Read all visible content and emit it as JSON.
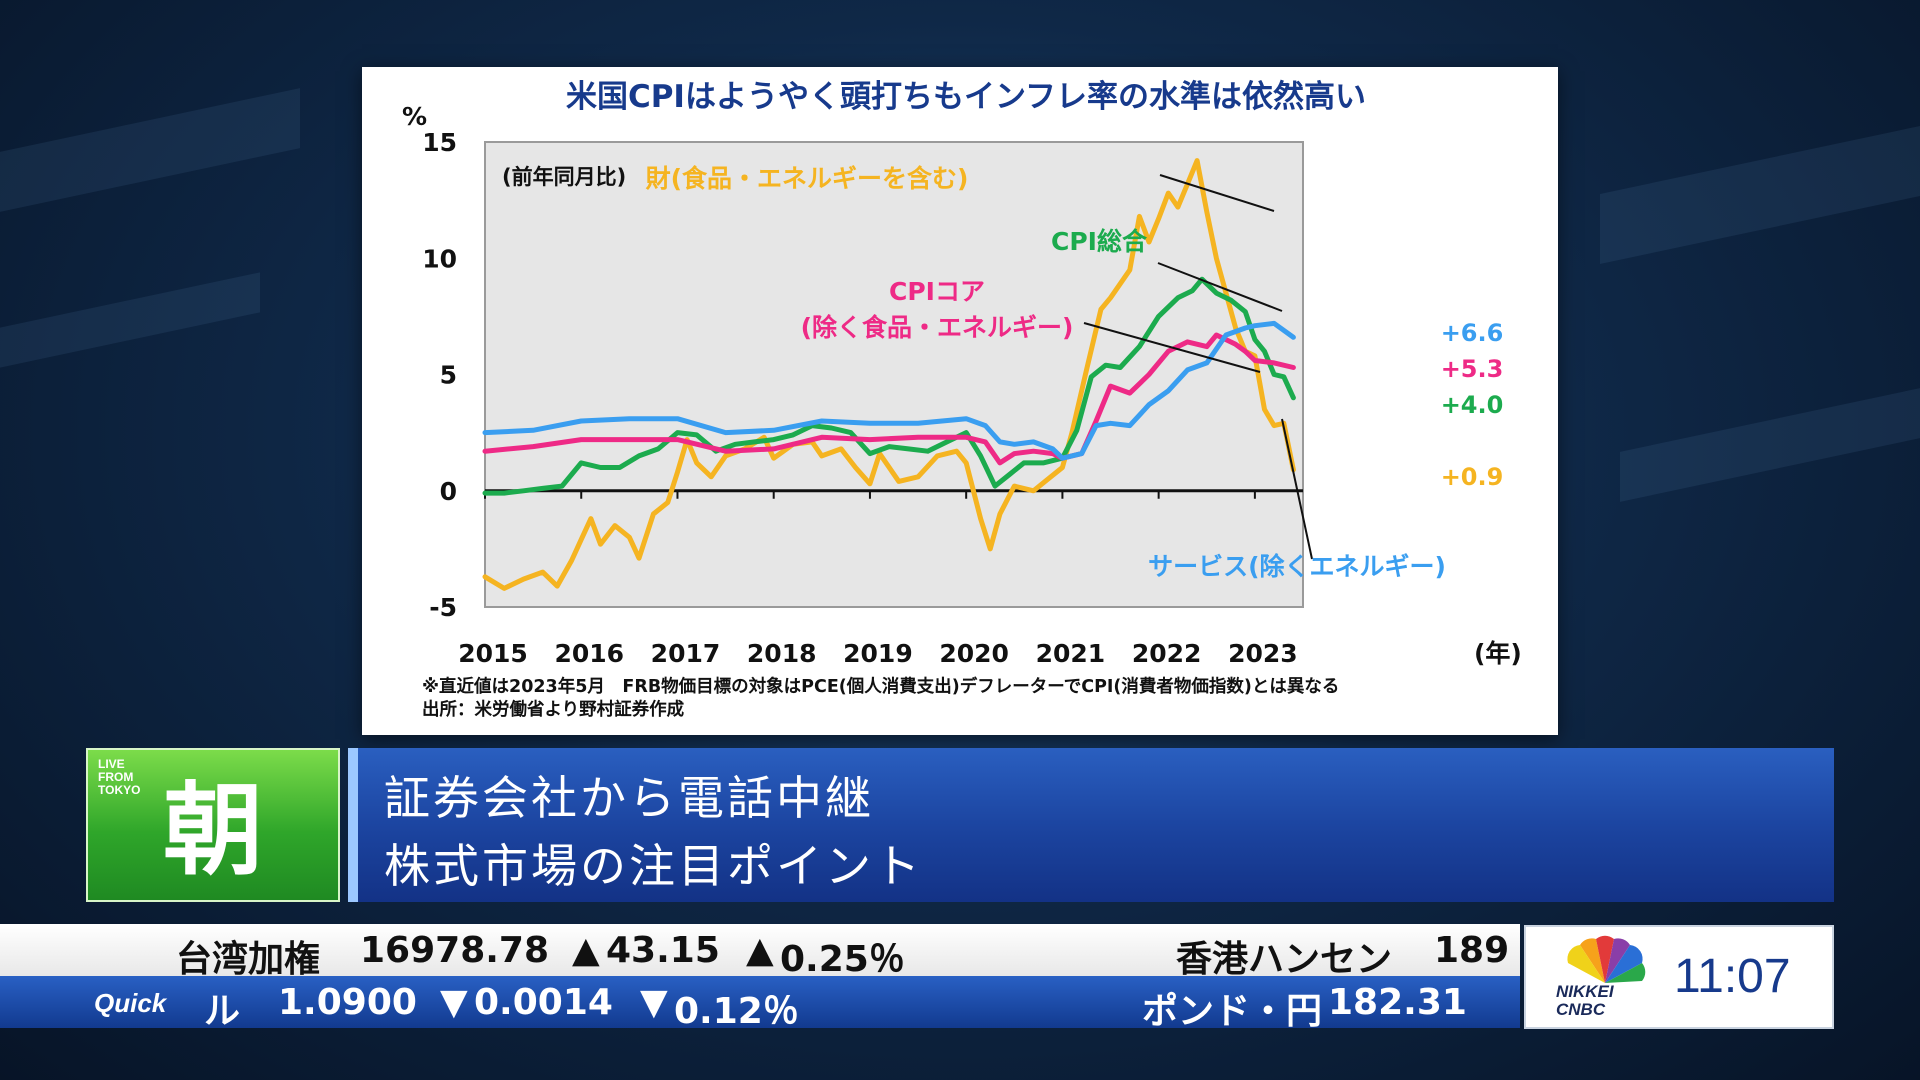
{
  "chart_data": {
    "type": "line",
    "title": "米国CPIはようやく頭打ちもインフレ率の水準は依然高い",
    "ylabel": "%",
    "xlabel": "(年)",
    "subtitle": "(前年同月比)",
    "ylim": [
      -5,
      15
    ],
    "xlim": [
      2015.0,
      2023.5
    ],
    "y_ticks": [
      15,
      10,
      5,
      0,
      -5
    ],
    "x_ticks": [
      2015,
      2016,
      2017,
      2018,
      2019,
      2020,
      2021,
      2022,
      2023
    ],
    "grid": false,
    "series": [
      {
        "name": "財(食品・エネルギーを含む)",
        "color": "#f5b421",
        "end_label": "+0.9",
        "x": [
          2015.0,
          2015.2,
          2015.4,
          2015.6,
          2015.75,
          2015.9,
          2016.0,
          2016.1,
          2016.2,
          2016.35,
          2016.5,
          2016.6,
          2016.75,
          2016.9,
          2017.0,
          2017.1,
          2017.2,
          2017.35,
          2017.5,
          2017.7,
          2017.9,
          2018.0,
          2018.2,
          2018.4,
          2018.5,
          2018.7,
          2018.85,
          2019.0,
          2019.1,
          2019.3,
          2019.5,
          2019.7,
          2019.9,
          2020.0,
          2020.15,
          2020.25,
          2020.35,
          2020.5,
          2020.7,
          2020.85,
          2021.0,
          2021.1,
          2021.25,
          2021.4,
          2021.5,
          2021.7,
          2021.8,
          2021.9,
          2022.0,
          2022.1,
          2022.2,
          2022.3,
          2022.4,
          2022.5,
          2022.6,
          2022.7,
          2022.8,
          2022.9,
          2023.0,
          2023.1,
          2023.2,
          2023.3,
          2023.4
        ],
        "values": [
          -3.7,
          -4.2,
          -3.8,
          -3.5,
          -4.1,
          -3.0,
          -2.1,
          -1.2,
          -2.3,
          -1.5,
          -2.0,
          -2.9,
          -1.0,
          -0.5,
          0.8,
          2.2,
          1.2,
          0.6,
          1.5,
          1.8,
          2.3,
          1.4,
          2.0,
          2.1,
          1.5,
          1.8,
          1.0,
          0.3,
          1.6,
          0.4,
          0.6,
          1.5,
          1.7,
          1.2,
          -1.2,
          -2.5,
          -1.0,
          0.2,
          0.0,
          0.5,
          1.0,
          2.5,
          5.2,
          7.8,
          8.3,
          9.5,
          11.8,
          10.7,
          11.7,
          12.8,
          12.2,
          13.2,
          14.2,
          12.0,
          10.0,
          8.5,
          7.0,
          6.0,
          5.8,
          3.5,
          2.8,
          2.9,
          0.9
        ]
      },
      {
        "name": "CPI総合",
        "color": "#1cab4e",
        "end_label": "+4.0",
        "x": [
          2015.0,
          2015.2,
          2015.4,
          2015.6,
          2015.8,
          2016.0,
          2016.2,
          2016.4,
          2016.6,
          2016.8,
          2017.0,
          2017.2,
          2017.4,
          2017.6,
          2017.8,
          2018.0,
          2018.2,
          2018.4,
          2018.6,
          2018.8,
          2019.0,
          2019.2,
          2019.4,
          2019.6,
          2019.8,
          2020.0,
          2020.15,
          2020.3,
          2020.45,
          2020.6,
          2020.8,
          2021.0,
          2021.15,
          2021.3,
          2021.45,
          2021.6,
          2021.8,
          2022.0,
          2022.2,
          2022.35,
          2022.45,
          2022.6,
          2022.75,
          2022.9,
          2023.0,
          2023.1,
          2023.2,
          2023.3,
          2023.4
        ],
        "values": [
          -0.1,
          -0.1,
          0.0,
          0.1,
          0.2,
          1.2,
          1.0,
          1.0,
          1.5,
          1.8,
          2.5,
          2.4,
          1.7,
          2.0,
          2.1,
          2.2,
          2.4,
          2.8,
          2.7,
          2.5,
          1.6,
          1.9,
          1.8,
          1.7,
          2.1,
          2.5,
          1.5,
          0.2,
          0.7,
          1.2,
          1.2,
          1.4,
          2.6,
          4.9,
          5.4,
          5.3,
          6.2,
          7.5,
          8.3,
          8.6,
          9.1,
          8.5,
          8.2,
          7.7,
          6.5,
          6.0,
          5.0,
          4.9,
          4.0
        ]
      },
      {
        "name": "CPIコア\n(除く食品・エネルギー)",
        "color": "#ee2a86",
        "end_label": "+5.3",
        "x": [
          2015.0,
          2015.5,
          2016.0,
          2016.5,
          2017.0,
          2017.5,
          2018.0,
          2018.5,
          2019.0,
          2019.5,
          2020.0,
          2020.2,
          2020.35,
          2020.5,
          2020.7,
          2020.9,
          2021.0,
          2021.2,
          2021.35,
          2021.5,
          2021.7,
          2021.9,
          2022.1,
          2022.3,
          2022.5,
          2022.6,
          2022.8,
          2022.9,
          2023.0,
          2023.2,
          2023.4
        ],
        "values": [
          1.7,
          1.9,
          2.2,
          2.2,
          2.2,
          1.7,
          1.8,
          2.3,
          2.2,
          2.3,
          2.3,
          2.1,
          1.2,
          1.6,
          1.7,
          1.6,
          1.4,
          1.6,
          3.0,
          4.5,
          4.2,
          5.0,
          6.0,
          6.4,
          6.2,
          6.7,
          6.3,
          6.0,
          5.6,
          5.5,
          5.3
        ]
      },
      {
        "name": "サービス(除くエネルギー)",
        "color": "#3a9ef0",
        "end_label": "+6.6",
        "x": [
          2015.0,
          2015.5,
          2016.0,
          2016.5,
          2017.0,
          2017.5,
          2018.0,
          2018.5,
          2019.0,
          2019.5,
          2020.0,
          2020.2,
          2020.35,
          2020.5,
          2020.7,
          2020.9,
          2021.0,
          2021.2,
          2021.35,
          2021.5,
          2021.7,
          2021.9,
          2022.1,
          2022.3,
          2022.5,
          2022.7,
          2022.9,
          2023.0,
          2023.2,
          2023.4
        ],
        "values": [
          2.5,
          2.6,
          3.0,
          3.1,
          3.1,
          2.5,
          2.6,
          3.0,
          2.9,
          2.9,
          3.1,
          2.8,
          2.1,
          2.0,
          2.1,
          1.8,
          1.4,
          1.6,
          2.8,
          2.9,
          2.8,
          3.7,
          4.3,
          5.2,
          5.5,
          6.7,
          7.0,
          7.1,
          7.2,
          6.6
        ]
      }
    ],
    "annotations": {
      "note1": "※直近値は2023年5月　FRB物価目標の対象はPCE(個人消費支出)デフレーターでCPI(消費者物価指数)とは異なる",
      "note2": "出所：米労働省より野村証券作成"
    }
  },
  "show": {
    "live_text": [
      "LIVE",
      "FROM",
      "TOKYO"
    ],
    "program_name": "朝",
    "headline_line1": "証券会社から電話中継",
    "headline_line2": "株式市場の注目ポイント"
  },
  "ticker": {
    "row1": {
      "name": "台湾加権",
      "value": "16978.78",
      "change_arrow": "▲",
      "change": "43.15",
      "pct_arrow": "▲",
      "pct": "0.25％",
      "name2": "香港ハンセン",
      "value2": "189"
    },
    "row2": {
      "brand": "Quick",
      "name": "ル",
      "value": "1.0900",
      "change_arrow": "▼",
      "change": "0.0014",
      "pct_arrow": "▼",
      "pct": "0.12％",
      "name2": "ポンド・円",
      "value2": "182.31"
    }
  },
  "brand": {
    "name_line1": "NIKKEI",
    "name_line2": "CNBC",
    "clock": "11:07"
  }
}
